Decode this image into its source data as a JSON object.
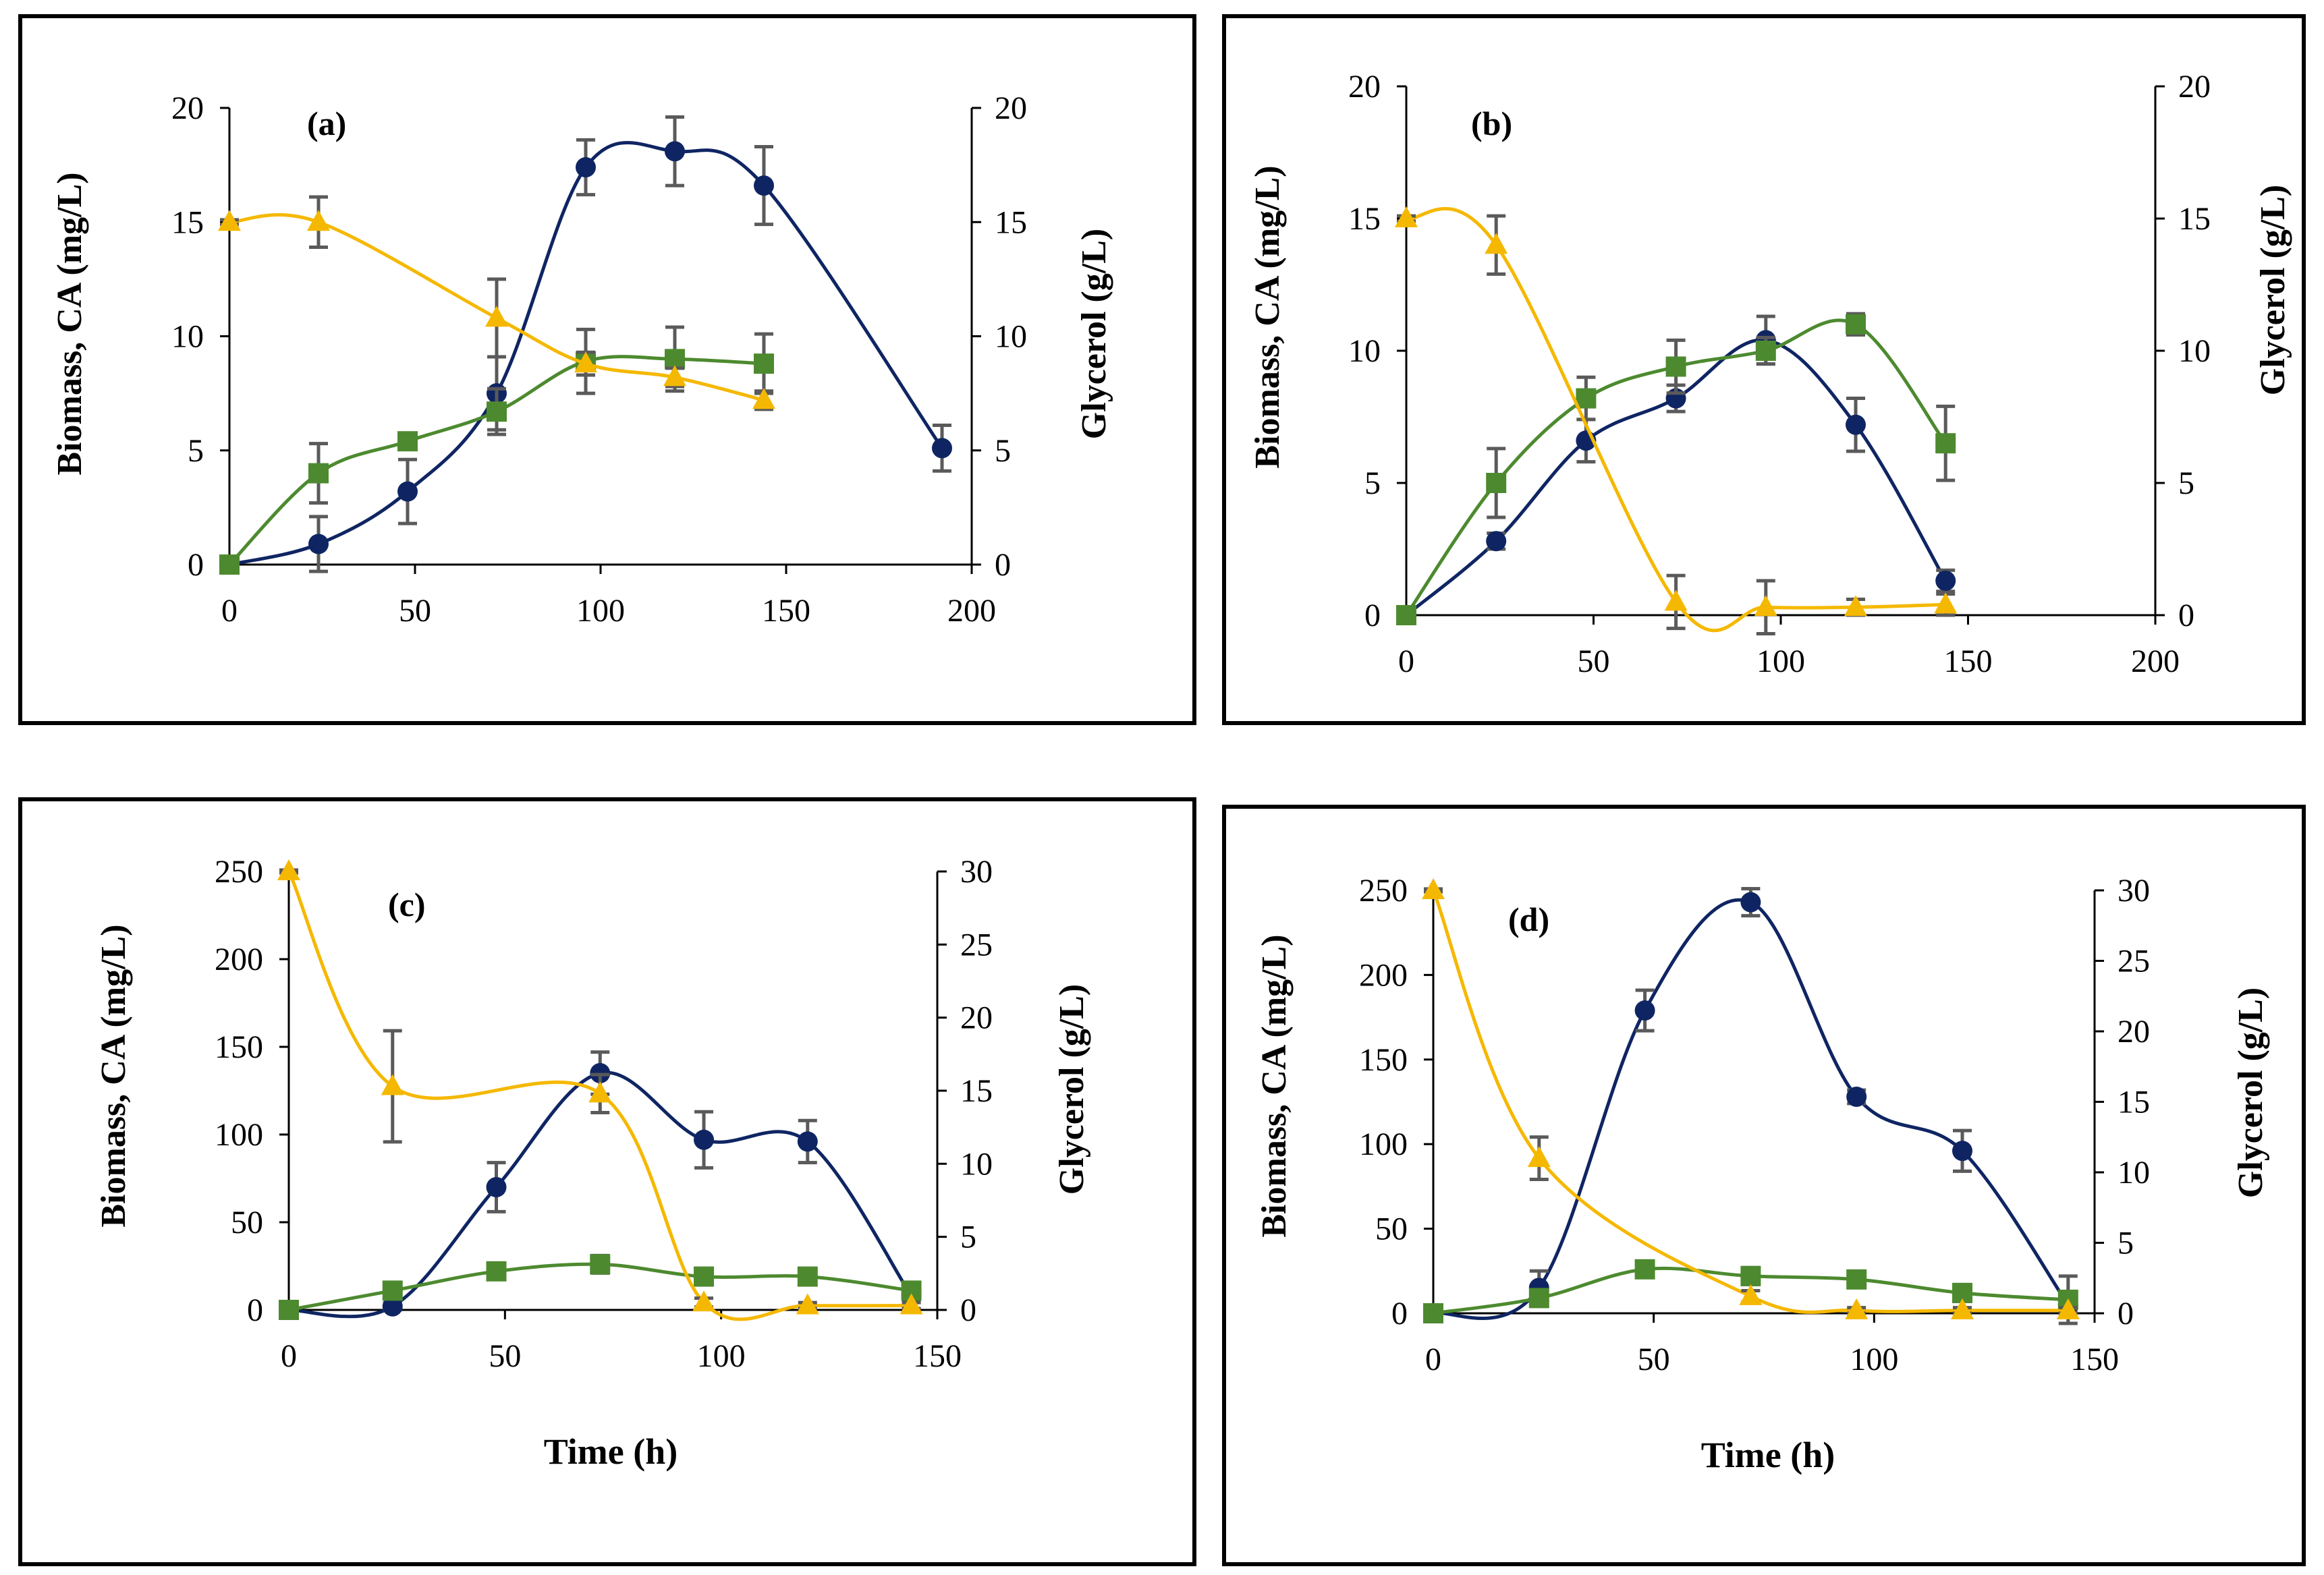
{
  "colors": {
    "ca": "#0f2563",
    "biomass": "#4d8a2f",
    "glycerol": "#f5b800",
    "error": "#5a5a5a",
    "axis": "#000000"
  },
  "chart_data": [
    {
      "type": "line",
      "panel_label": "(a)",
      "xlabel": "",
      "ylabel_left": "Biomass, CA (mg/L)",
      "ylabel_right": "Glycerol (g/L)",
      "xlim": [
        0,
        200
      ],
      "xticks": [
        "0",
        "50",
        "100",
        "150",
        "200"
      ],
      "ylim_left": [
        0,
        20
      ],
      "yticks_left": [
        "0",
        "5",
        "10",
        "15",
        "20"
      ],
      "ylim_right": [
        0,
        20
      ],
      "yticks_right": [
        "0",
        "5",
        "10",
        "15",
        "20"
      ],
      "series": [
        {
          "name": "CA",
          "axis": "left",
          "marker": "circle",
          "color_key": "ca",
          "x": [
            0,
            24,
            48,
            72,
            96,
            120,
            144,
            192
          ],
          "y": [
            0,
            0.9,
            3.2,
            7.5,
            17.4,
            18.1,
            16.6,
            5.1
          ],
          "err": [
            0.2,
            1.2,
            1.4,
            1.6,
            1.2,
            1.5,
            1.7,
            1.0
          ]
        },
        {
          "name": "Biomass",
          "axis": "left",
          "marker": "square",
          "color_key": "biomass",
          "x": [
            0,
            24,
            48,
            72,
            96,
            120,
            144
          ],
          "y": [
            0,
            4.0,
            5.4,
            6.7,
            8.9,
            9.0,
            8.8
          ],
          "err": [
            0.1,
            1.3,
            0.3,
            1.0,
            1.4,
            1.4,
            1.3
          ]
        },
        {
          "name": "Glycerol",
          "axis": "right",
          "marker": "triangle",
          "color_key": "glycerol",
          "x": [
            0,
            24,
            72,
            96,
            120,
            144
          ],
          "y": [
            15.0,
            15.0,
            10.8,
            8.8,
            8.2,
            7.2
          ],
          "err": [
            0.1,
            1.1,
            1.7,
            0.5,
            0.4,
            0.4
          ]
        }
      ]
    },
    {
      "type": "line",
      "panel_label": "(b)",
      "xlabel": "",
      "ylabel_left": "Biomass, CA (mg/L)",
      "ylabel_right": "Glycerol (g/L)",
      "xlim": [
        0,
        200
      ],
      "xticks": [
        "0",
        "50",
        "100",
        "150",
        "200"
      ],
      "ylim_left": [
        0,
        20
      ],
      "yticks_left": [
        "0",
        "5",
        "10",
        "15",
        "20"
      ],
      "ylim_right": [
        0,
        20
      ],
      "yticks_right": [
        "0",
        "5",
        "10",
        "15",
        "20"
      ],
      "series": [
        {
          "name": "CA",
          "axis": "left",
          "marker": "circle",
          "color_key": "ca",
          "x": [
            0,
            24,
            48,
            72,
            96,
            120,
            144
          ],
          "y": [
            0,
            2.8,
            6.6,
            8.2,
            10.4,
            7.2,
            1.3
          ],
          "err": [
            0.1,
            0.3,
            0.8,
            0.5,
            0.9,
            1.0,
            0.4
          ]
        },
        {
          "name": "Biomass",
          "axis": "left",
          "marker": "square",
          "color_key": "biomass",
          "x": [
            0,
            24,
            48,
            72,
            96,
            120,
            144
          ],
          "y": [
            0,
            5.0,
            8.2,
            9.4,
            10.0,
            11.0,
            6.5
          ],
          "err": [
            0.1,
            1.3,
            0.8,
            1.0,
            0.5,
            0.4,
            1.4
          ]
        },
        {
          "name": "Glycerol",
          "axis": "right",
          "marker": "triangle",
          "color_key": "glycerol",
          "x": [
            0,
            24,
            72,
            96,
            120,
            144
          ],
          "y": [
            15.0,
            14.0,
            0.5,
            0.3,
            0.3,
            0.4
          ],
          "err": [
            0.1,
            1.1,
            1.0,
            1.0,
            0.3,
            0.4
          ]
        }
      ]
    },
    {
      "type": "line",
      "panel_label": "(c)",
      "xlabel": "Time (h)",
      "ylabel_left": "Biomass, CA (mg/L)",
      "ylabel_right": "Glycerol (g/L)",
      "xlim": [
        0,
        150
      ],
      "xticks": [
        "0",
        "50",
        "100",
        "150"
      ],
      "ylim_left": [
        0,
        250
      ],
      "yticks_left": [
        "0",
        "50",
        "100",
        "150",
        "200",
        "250"
      ],
      "ylim_right": [
        0,
        30
      ],
      "yticks_right": [
        "0",
        "5",
        "10",
        "15",
        "20",
        "25",
        "30"
      ],
      "series": [
        {
          "name": "CA",
          "axis": "left",
          "marker": "circle",
          "color_key": "ca",
          "x": [
            0,
            24,
            48,
            72,
            96,
            120,
            144
          ],
          "y": [
            0,
            2,
            70,
            135,
            97,
            96,
            8
          ],
          "err": [
            1,
            2,
            14,
            12,
            16,
            12,
            3
          ]
        },
        {
          "name": "Biomass",
          "axis": "left",
          "marker": "square",
          "color_key": "biomass",
          "x": [
            0,
            24,
            48,
            72,
            96,
            120,
            144
          ],
          "y": [
            0,
            11,
            22,
            26,
            19,
            19,
            11
          ],
          "err": [
            1,
            3,
            4,
            5,
            4,
            4,
            3
          ]
        },
        {
          "name": "Glycerol",
          "axis": "right",
          "marker": "triangle",
          "color_key": "glycerol",
          "x": [
            0,
            24,
            72,
            96,
            120,
            144
          ],
          "y": [
            30.0,
            15.3,
            14.8,
            0.5,
            0.3,
            0.3
          ],
          "err": [
            0.1,
            3.8,
            1.3,
            0.3,
            0.2,
            0.2
          ]
        }
      ]
    },
    {
      "type": "line",
      "panel_label": "(d)",
      "xlabel": "Time (h)",
      "ylabel_left": "Biomass, CA (mg/L)",
      "ylabel_right": "Glycerol (g/L)",
      "xlim": [
        0,
        150
      ],
      "xticks": [
        "0",
        "50",
        "100",
        "150"
      ],
      "ylim_left": [
        0,
        250
      ],
      "yticks_left": [
        "0",
        "50",
        "100",
        "150",
        "200",
        "250"
      ],
      "ylim_right": [
        0,
        30
      ],
      "yticks_right": [
        "0",
        "5",
        "10",
        "15",
        "20",
        "25",
        "30"
      ],
      "series": [
        {
          "name": "CA",
          "axis": "left",
          "marker": "circle",
          "color_key": "ca",
          "x": [
            0,
            24,
            48,
            72,
            96,
            120,
            144
          ],
          "y": [
            0,
            15,
            179,
            243,
            128,
            96,
            5
          ],
          "err": [
            1,
            10,
            12,
            8,
            4,
            12,
            3
          ]
        },
        {
          "name": "Biomass",
          "axis": "left",
          "marker": "square",
          "color_key": "biomass",
          "x": [
            0,
            24,
            48,
            72,
            96,
            120,
            144
          ],
          "y": [
            0,
            9,
            26,
            22,
            20,
            12,
            8
          ],
          "err": [
            1,
            3,
            4,
            5,
            4,
            5,
            14
          ]
        },
        {
          "name": "Glycerol",
          "axis": "right",
          "marker": "triangle",
          "color_key": "glycerol",
          "x": [
            0,
            24,
            72,
            96,
            120,
            144
          ],
          "y": [
            30.0,
            11.0,
            1.2,
            0.2,
            0.2,
            0.2
          ],
          "err": [
            0.1,
            1.5,
            0.4,
            0.2,
            0.2,
            0.2
          ]
        }
      ]
    }
  ]
}
